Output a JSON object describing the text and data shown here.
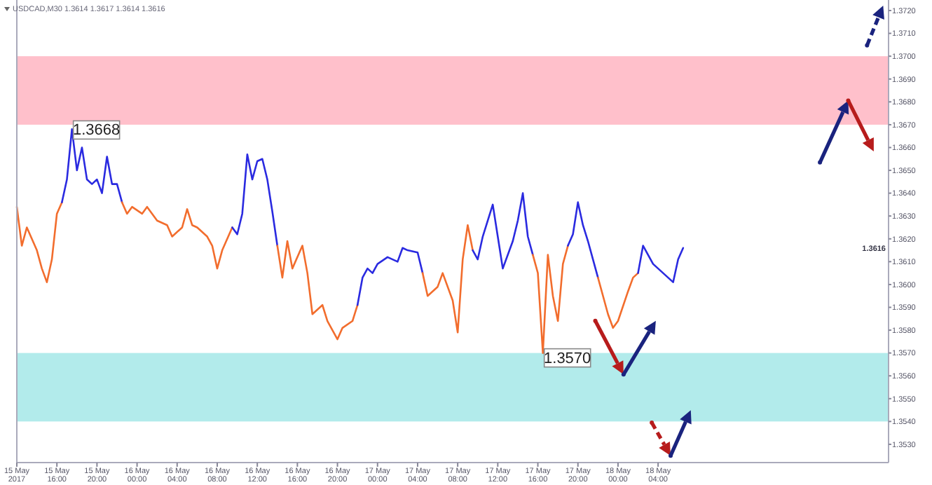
{
  "chart_data": {
    "type": "line",
    "title": "USDCAD,M30 1.3614 1.3617 1.3614 1.3616",
    "xlim": [
      "2017-05-15T12:00",
      "2017-05-19T03:00"
    ],
    "xticks": [
      {
        "value": "2017-05-15T12:00",
        "label": "15 May 2017"
      },
      {
        "value": "2017-05-15T16:00",
        "label": "15 May 16:00"
      },
      {
        "value": "2017-05-15T20:00",
        "label": "15 May 20:00"
      },
      {
        "value": "2017-05-16T00:00",
        "label": "16 May 00:00"
      },
      {
        "value": "2017-05-16T04:00",
        "label": "16 May 04:00"
      },
      {
        "value": "2017-05-16T08:00",
        "label": "16 May 08:00"
      },
      {
        "value": "2017-05-16T12:00",
        "label": "16 May 12:00"
      },
      {
        "value": "2017-05-16T16:00",
        "label": "16 May 16:00"
      },
      {
        "value": "2017-05-16T20:00",
        "label": "16 May 20:00"
      },
      {
        "value": "2017-05-17T00:00",
        "label": "17 May 00:00"
      },
      {
        "value": "2017-05-17T04:00",
        "label": "17 May 04:00"
      },
      {
        "value": "2017-05-17T08:00",
        "label": "17 May 08:00"
      },
      {
        "value": "2017-05-17T12:00",
        "label": "17 May 12:00"
      },
      {
        "value": "2017-05-17T16:00",
        "label": "17 May 16:00"
      },
      {
        "value": "2017-05-17T20:00",
        "label": "17 May 20:00"
      },
      {
        "value": "2017-05-18T00:00",
        "label": "18 May 00:00"
      },
      {
        "value": "2017-05-18T04:00",
        "label": "18 May 04:00"
      }
    ],
    "ylim": [
      1.3522,
      1.3724
    ],
    "yticks": [
      {
        "value": 1.353,
        "label": "1.3530"
      },
      {
        "value": 1.354,
        "label": "1.3540"
      },
      {
        "value": 1.355,
        "label": "1.3550"
      },
      {
        "value": 1.356,
        "label": "1.3560"
      },
      {
        "value": 1.357,
        "label": "1.3570"
      },
      {
        "value": 1.358,
        "label": "1.3580"
      },
      {
        "value": 1.359,
        "label": "1.3590"
      },
      {
        "value": 1.36,
        "label": "1.3600"
      },
      {
        "value": 1.361,
        "label": "1.3610"
      },
      {
        "value": 1.362,
        "label": "1.3620"
      },
      {
        "value": 1.363,
        "label": "1.3630"
      },
      {
        "value": 1.364,
        "label": "1.3640"
      },
      {
        "value": 1.365,
        "label": "1.3650"
      },
      {
        "value": 1.366,
        "label": "1.3660"
      },
      {
        "value": 1.367,
        "label": "1.3670"
      },
      {
        "value": 1.368,
        "label": "1.3680"
      },
      {
        "value": 1.369,
        "label": "1.3690"
      },
      {
        "value": 1.37,
        "label": "1.3700"
      },
      {
        "value": 1.371,
        "label": "1.3710"
      },
      {
        "value": 1.372,
        "label": "1.3720"
      }
    ],
    "bands": [
      {
        "axis": "y",
        "from": 1.367,
        "to": 1.37,
        "color": "#ffc0cb"
      },
      {
        "axis": "y",
        "from": 1.354,
        "to": 1.357,
        "color": "#b2ebeb"
      }
    ],
    "annotations": [
      {
        "text": "1.3668",
        "x": "2017-05-15T17:30",
        "y": 1.3668
      },
      {
        "text": "1.3570",
        "x": "2017-05-17T16:30",
        "y": 1.357
      },
      "1.3616"
    ],
    "series": [
      {
        "color": "#f26d2d",
        "x": [
          "2017-05-15T12:00",
          "2017-05-15T12:30",
          "2017-05-15T13:00",
          "2017-05-15T14:00",
          "2017-05-15T14:30",
          "2017-05-15T15:00",
          "2017-05-15T15:30",
          "2017-05-15T16:00",
          "2017-05-15T16:30"
        ],
        "values": [
          1.3634,
          1.3617,
          1.3625,
          1.3615,
          1.3607,
          1.3601,
          1.3611,
          1.3631,
          1.3636
        ]
      },
      {
        "color": "#2a2ae0",
        "x": [
          "2017-05-15T16:30",
          "2017-05-15T17:00",
          "2017-05-15T17:30",
          "2017-05-15T18:00",
          "2017-05-15T18:30",
          "2017-05-15T19:00",
          "2017-05-15T19:30",
          "2017-05-15T20:00",
          "2017-05-15T20:30",
          "2017-05-15T21:00",
          "2017-05-15T21:30",
          "2017-05-15T22:00",
          "2017-05-15T22:30"
        ],
        "values": [
          1.3636,
          1.3646,
          1.3668,
          1.365,
          1.366,
          1.3646,
          1.3644,
          1.3646,
          1.364,
          1.3656,
          1.3644,
          1.3644,
          1.3636
        ]
      },
      {
        "color": "#f26d2d",
        "x": [
          "2017-05-15T22:30",
          "2017-05-15T23:00",
          "2017-05-15T23:30",
          "2017-05-16T00:30",
          "2017-05-16T01:00",
          "2017-05-16T02:00",
          "2017-05-16T03:00",
          "2017-05-16T03:30",
          "2017-05-16T04:30",
          "2017-05-16T05:00",
          "2017-05-16T05:30",
          "2017-05-16T06:00",
          "2017-05-16T07:00",
          "2017-05-16T07:30",
          "2017-05-16T08:00",
          "2017-05-16T08:30",
          "2017-05-16T09:30"
        ],
        "values": [
          1.3636,
          1.3631,
          1.3634,
          1.3631,
          1.3634,
          1.3628,
          1.3626,
          1.3621,
          1.3625,
          1.3633,
          1.3626,
          1.3625,
          1.3621,
          1.3617,
          1.3607,
          1.3615,
          1.3625
        ]
      },
      {
        "color": "#2a2ae0",
        "x": [
          "2017-05-16T09:30",
          "2017-05-16T10:00",
          "2017-05-16T10:30",
          "2017-05-16T11:00",
          "2017-05-16T11:30",
          "2017-05-16T12:00",
          "2017-05-16T12:30",
          "2017-05-16T13:00",
          "2017-05-16T13:30",
          "2017-05-16T14:00"
        ],
        "values": [
          1.3625,
          1.3622,
          1.3631,
          1.3657,
          1.3646,
          1.3654,
          1.3655,
          1.3646,
          1.3632,
          1.3617
        ]
      },
      {
        "color": "#f26d2d",
        "x": [
          "2017-05-16T14:00",
          "2017-05-16T14:30",
          "2017-05-16T15:00",
          "2017-05-16T15:30",
          "2017-05-16T16:30",
          "2017-05-16T17:00",
          "2017-05-16T17:30",
          "2017-05-16T18:30",
          "2017-05-16T19:00",
          "2017-05-16T20:00",
          "2017-05-16T20:30",
          "2017-05-16T21:30",
          "2017-05-16T22:00"
        ],
        "values": [
          1.3617,
          1.3603,
          1.3619,
          1.3607,
          1.3617,
          1.3605,
          1.3587,
          1.3591,
          1.3584,
          1.3576,
          1.3581,
          1.3584,
          1.3591
        ]
      },
      {
        "color": "#2a2ae0",
        "x": [
          "2017-05-16T22:00",
          "2017-05-16T22:30",
          "2017-05-16T23:00",
          "2017-05-16T23:30",
          "2017-05-17T00:00",
          "2017-05-17T01:00",
          "2017-05-17T02:00",
          "2017-05-17T02:30",
          "2017-05-17T03:00",
          "2017-05-17T04:00",
          "2017-05-17T04:30"
        ],
        "values": [
          1.3591,
          1.3603,
          1.3607,
          1.3605,
          1.3609,
          1.3612,
          1.361,
          1.3616,
          1.3615,
          1.3614,
          1.3605
        ]
      },
      {
        "color": "#f26d2d",
        "x": [
          "2017-05-17T04:30",
          "2017-05-17T05:00",
          "2017-05-17T06:00",
          "2017-05-17T06:30",
          "2017-05-17T07:30",
          "2017-05-17T08:00",
          "2017-05-17T08:30",
          "2017-05-17T09:00",
          "2017-05-17T09:30"
        ],
        "values": [
          1.3605,
          1.3595,
          1.3599,
          1.3605,
          1.3593,
          1.3579,
          1.3611,
          1.3626,
          1.3615
        ]
      },
      {
        "color": "#2a2ae0",
        "x": [
          "2017-05-17T09:30",
          "2017-05-17T10:00",
          "2017-05-17T10:30",
          "2017-05-17T11:30",
          "2017-05-17T12:00",
          "2017-05-17T12:30",
          "2017-05-17T13:30",
          "2017-05-17T14:00",
          "2017-05-17T14:30",
          "2017-05-17T15:00",
          "2017-05-17T15:30"
        ],
        "values": [
          1.3615,
          1.3611,
          1.3621,
          1.3635,
          1.3621,
          1.3607,
          1.3619,
          1.3628,
          1.364,
          1.3621,
          1.3613
        ]
      },
      {
        "color": "#f26d2d",
        "x": [
          "2017-05-17T15:30",
          "2017-05-17T16:00",
          "2017-05-17T16:30",
          "2017-05-17T17:00",
          "2017-05-17T17:30",
          "2017-05-17T18:00",
          "2017-05-17T18:30",
          "2017-05-17T19:00"
        ],
        "values": [
          1.3613,
          1.3605,
          1.357,
          1.3613,
          1.3595,
          1.3584,
          1.3609,
          1.3617
        ]
      },
      {
        "color": "#2a2ae0",
        "x": [
          "2017-05-17T19:00",
          "2017-05-17T19:30",
          "2017-05-17T20:00",
          "2017-05-17T20:30",
          "2017-05-17T21:00",
          "2017-05-17T21:30",
          "2017-05-17T22:00"
        ],
        "values": [
          1.3617,
          1.3622,
          1.3636,
          1.3626,
          1.3619,
          1.3611,
          1.3603
        ]
      },
      {
        "color": "#f26d2d",
        "x": [
          "2017-05-17T22:00",
          "2017-05-17T23:00",
          "2017-05-17T23:30",
          "2017-05-18T00:00",
          "2017-05-18T01:00",
          "2017-05-18T01:30",
          "2017-05-18T02:00"
        ],
        "values": [
          1.3603,
          1.3587,
          1.3581,
          1.3584,
          1.3597,
          1.3603,
          1.3605
        ]
      },
      {
        "color": "#2a2ae0",
        "x": [
          "2017-05-18T02:00",
          "2017-05-18T02:30",
          "2017-05-18T03:30",
          "2017-05-18T04:30",
          "2017-05-18T05:00",
          "2017-05-18T05:30",
          "2017-05-18T06:00",
          "2017-05-18T06:30"
        ],
        "values": [
          1.3605,
          1.3617,
          1.3609,
          1.3605,
          1.3603,
          1.3601,
          1.3611,
          1.3616
        ]
      }
    ]
  }
}
